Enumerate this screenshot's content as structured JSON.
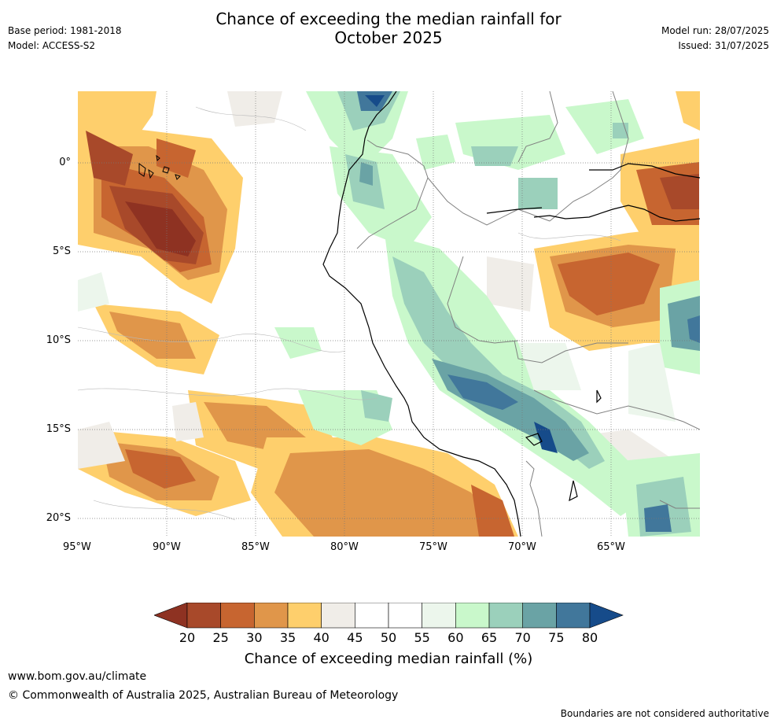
{
  "header": {
    "title_line1": "Chance of exceeding the median rainfall for",
    "title_line2": "October 2025",
    "base_period": "Base period: 1981-2018",
    "model": "Model: ACCESS-S2",
    "model_run": "Model run: 28/07/2025",
    "issued": "Issued: 31/07/2025"
  },
  "map": {
    "region": "Northwestern South America and adjacent Pacific",
    "x_ticks": [
      "95°W",
      "90°W",
      "85°W",
      "80°W",
      "75°W",
      "70°W",
      "65°W"
    ],
    "y_ticks": [
      "0°",
      "5°S",
      "10°S",
      "15°S",
      "20°S"
    ],
    "lon_range": [
      -95,
      -60
    ],
    "lat_range": [
      -21,
      4
    ]
  },
  "colorbar": {
    "title": "Chance of exceeding median rainfall (%)",
    "labels": [
      "20",
      "25",
      "30",
      "35",
      "40",
      "45",
      "50",
      "55",
      "60",
      "65",
      "70",
      "75",
      "80"
    ],
    "colors": [
      "#a8492a",
      "#c76530",
      "#e0964a",
      "#fecf6c",
      "#f0ede8",
      "#ffffff",
      "#ffffff",
      "#ecf6ec",
      "#c9f8cb",
      "#9bd0bb",
      "#6aa3a5",
      "#41779b"
    ],
    "low_extend_color": "#8e3222",
    "high_extend_color": "#164b8a"
  },
  "footer": {
    "website": "www.bom.gov.au/climate",
    "copyright": "© Commonwealth of Australia 2025, Australian Bureau of Meteorology",
    "disclaimer": "Boundaries are not considered authoritative"
  }
}
